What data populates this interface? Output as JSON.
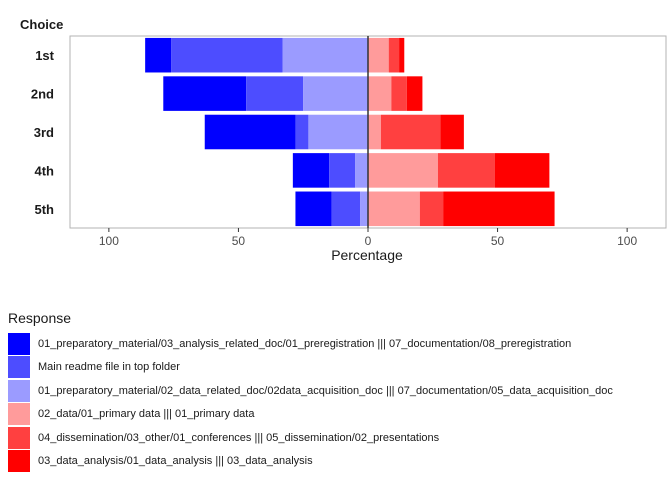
{
  "chart_data": {
    "type": "bar",
    "orientation": "horizontal-diverging",
    "y_title": "Choice",
    "xlabel": "Percentage",
    "xlim": [
      -115,
      115
    ],
    "x_ticks": [
      -100,
      -50,
      0,
      50,
      100
    ],
    "x_tick_labels": [
      "100",
      "50",
      "0",
      "50",
      "100"
    ],
    "categories": [
      "1st",
      "2nd",
      "3rd",
      "4th",
      "5th"
    ],
    "legend_title": "Response",
    "legend_position": "bottom-left",
    "grid": false,
    "series": [
      {
        "name": "01_preparatory_material/03_analysis_related_doc/01_preregistration |||  07_documentation/08_preregistration",
        "color": "#0000ff",
        "side": "negative",
        "values": [
          10,
          32,
          35,
          14,
          14
        ]
      },
      {
        "name": "Main readme file in top folder",
        "color": "#4d4dff",
        "side": "negative",
        "values": [
          43,
          22,
          5,
          10,
          11
        ]
      },
      {
        "name": "01_preparatory_material/02_data_related_doc/02data_acquisition_doc  ||| 07_documentation/05_data_acquisition_doc",
        "color": "#9b9bff",
        "side": "negative",
        "values": [
          33,
          25,
          23,
          5,
          3
        ]
      },
      {
        "name": "02_data/01_primary data  ||| 01_primary data",
        "color": "#ff9b9b",
        "side": "positive",
        "values": [
          8,
          9,
          5,
          27,
          20
        ]
      },
      {
        "name": "04_dissemination/03_other/01_conferences ||| 05_dissemination/02_presentations",
        "color": "#ff4040",
        "side": "positive",
        "values": [
          4,
          6,
          23,
          22,
          9
        ]
      },
      {
        "name": "03_data_analysis/01_data_analysis ||| 03_data_analysis",
        "color": "#ff0000",
        "side": "positive",
        "values": [
          2,
          6,
          9,
          21,
          43
        ]
      }
    ]
  }
}
